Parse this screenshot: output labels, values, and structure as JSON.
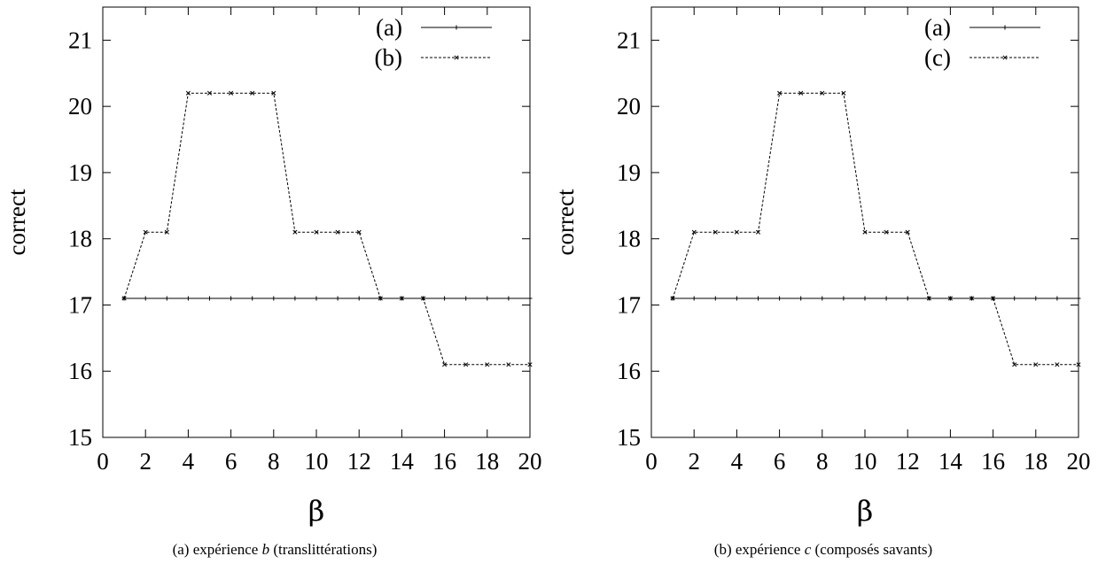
{
  "chart_data": [
    {
      "type": "line",
      "xlabel": "β",
      "ylabel": "correct",
      "xlim": [
        0,
        20
      ],
      "ylim": [
        15,
        21.5
      ],
      "xticks": [
        0,
        2,
        4,
        6,
        8,
        10,
        12,
        14,
        16,
        18,
        20
      ],
      "yticks": [
        15,
        16,
        17,
        18,
        19,
        20,
        21
      ],
      "grid": false,
      "legend": "top-right",
      "x": [
        1,
        2,
        3,
        4,
        5,
        6,
        7,
        8,
        9,
        10,
        11,
        12,
        13,
        14,
        15,
        16,
        17,
        18,
        19,
        20
      ],
      "series": [
        {
          "name": "(a)",
          "style": "solid",
          "marker": "plus",
          "values": [
            17.1,
            17.1,
            17.1,
            17.1,
            17.1,
            17.1,
            17.1,
            17.1,
            17.1,
            17.1,
            17.1,
            17.1,
            17.1,
            17.1,
            17.1,
            17.1,
            17.1,
            17.1,
            17.1,
            17.1
          ]
        },
        {
          "name": "(b)",
          "style": "dashed",
          "marker": "cross",
          "values": [
            17.1,
            18.1,
            18.1,
            20.2,
            20.2,
            20.2,
            20.2,
            20.2,
            18.1,
            18.1,
            18.1,
            18.1,
            17.1,
            17.1,
            17.1,
            16.1,
            16.1,
            16.1,
            16.1,
            16.1
          ]
        }
      ],
      "caption": {
        "prefix": "(a)  expérience ",
        "variable": "b",
        "suffix": " (translittérations)"
      }
    },
    {
      "type": "line",
      "xlabel": "β",
      "ylabel": "correct",
      "xlim": [
        0,
        20
      ],
      "ylim": [
        15,
        21.5
      ],
      "xticks": [
        0,
        2,
        4,
        6,
        8,
        10,
        12,
        14,
        16,
        18,
        20
      ],
      "yticks": [
        15,
        16,
        17,
        18,
        19,
        20,
        21
      ],
      "grid": false,
      "legend": "top-right",
      "x": [
        1,
        2,
        3,
        4,
        5,
        6,
        7,
        8,
        9,
        10,
        11,
        12,
        13,
        14,
        15,
        16,
        17,
        18,
        19,
        20
      ],
      "series": [
        {
          "name": "(a)",
          "style": "solid",
          "marker": "plus",
          "values": [
            17.1,
            17.1,
            17.1,
            17.1,
            17.1,
            17.1,
            17.1,
            17.1,
            17.1,
            17.1,
            17.1,
            17.1,
            17.1,
            17.1,
            17.1,
            17.1,
            17.1,
            17.1,
            17.1,
            17.1
          ]
        },
        {
          "name": "(c)",
          "style": "dashed",
          "marker": "cross",
          "values": [
            17.1,
            18.1,
            18.1,
            18.1,
            18.1,
            20.2,
            20.2,
            20.2,
            20.2,
            18.1,
            18.1,
            18.1,
            17.1,
            17.1,
            17.1,
            17.1,
            16.1,
            16.1,
            16.1,
            16.1
          ]
        }
      ],
      "caption": {
        "prefix": "(b)  expérience ",
        "variable": "c",
        "suffix": " (composés savants)"
      }
    }
  ]
}
